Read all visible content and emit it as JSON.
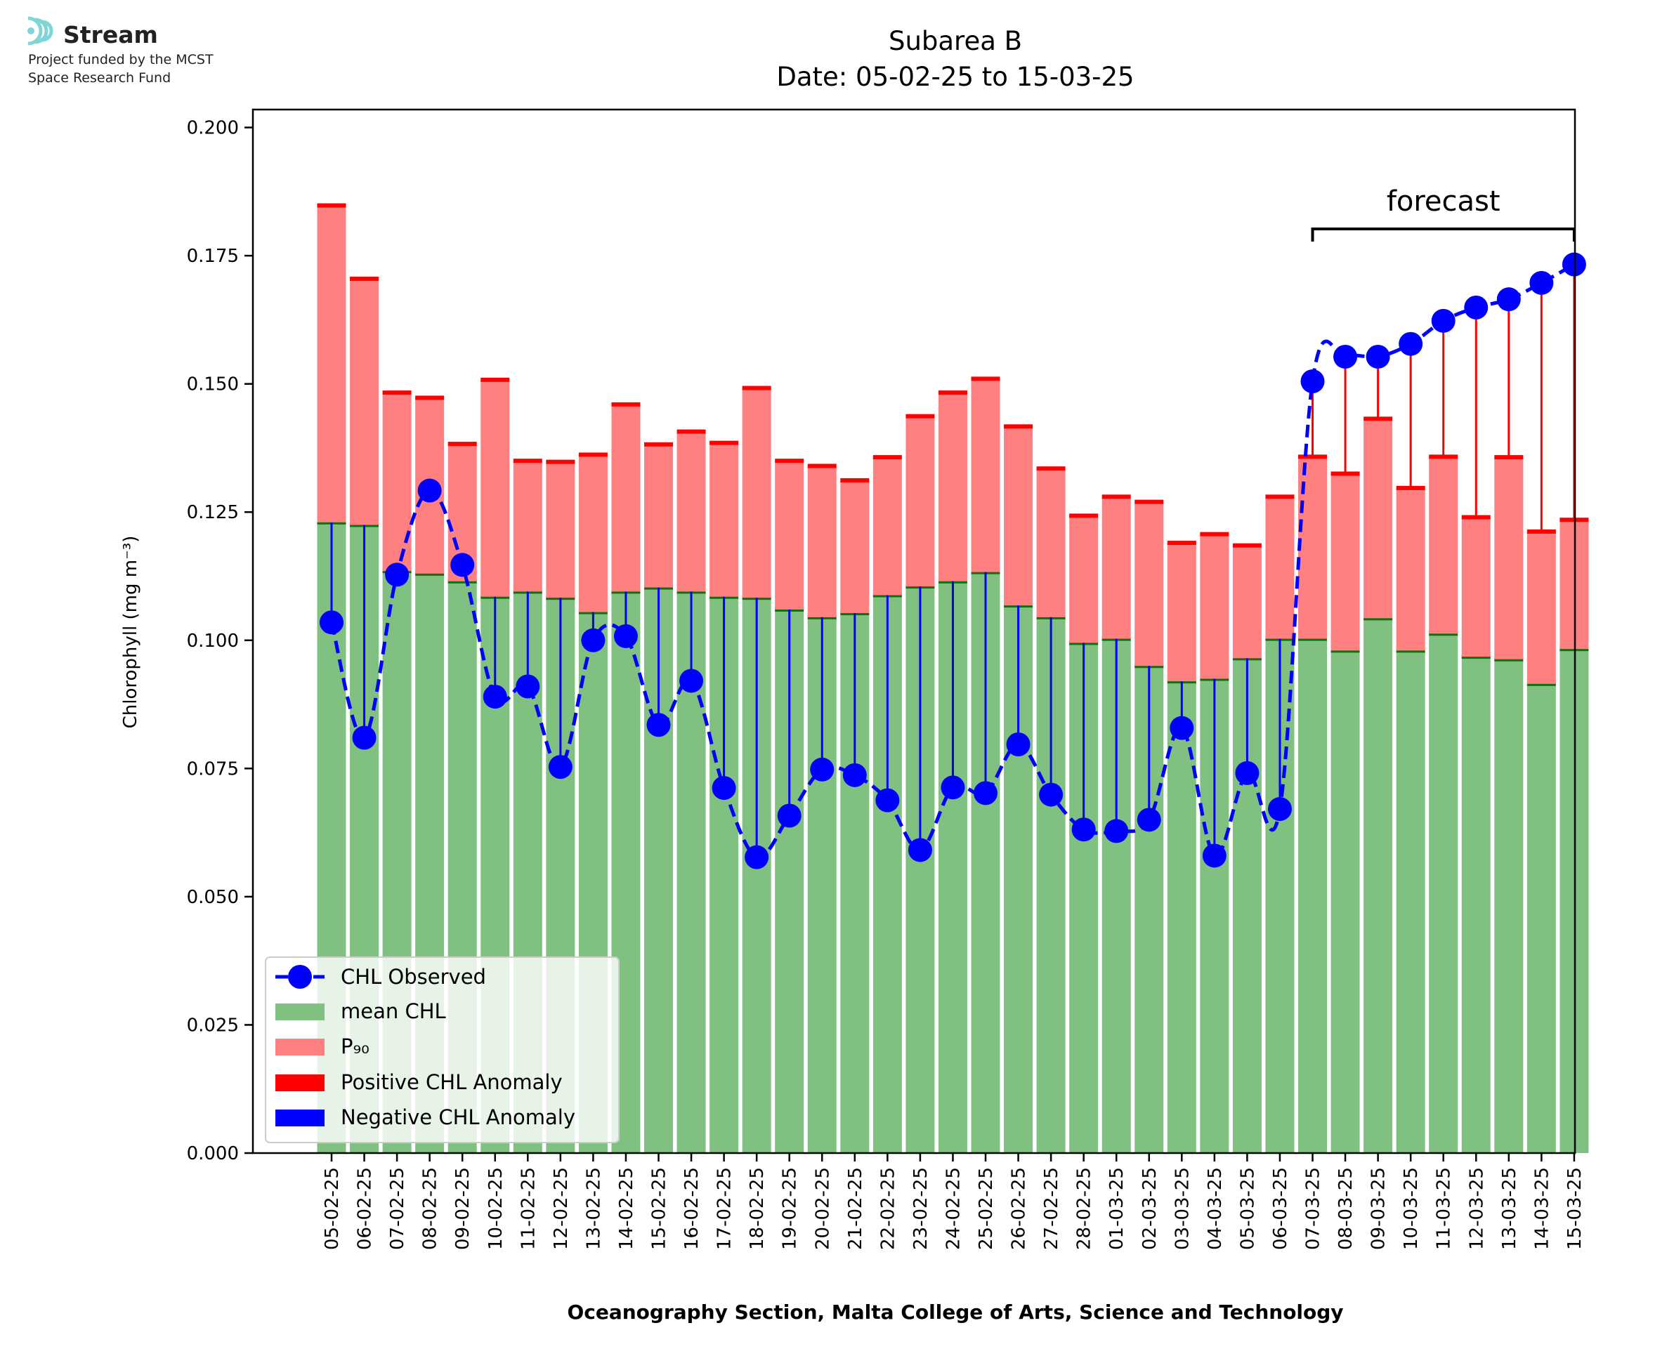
{
  "logo": {
    "name": "Stream",
    "line1": "Project funded by the MCST",
    "line2": "Space Research Fund",
    "color": "#7fd6d8"
  },
  "chart_data": {
    "type": "bar",
    "title": "Subarea B",
    "subtitle": "Date: 05-02-25 to 15-03-25",
    "ylabel": "Chlorophyll (mg m⁻³)",
    "xlabel": "Oceanography Section, Malta College of Arts, Science and Technology",
    "ylim": [
      0,
      0.2035
    ],
    "yticks": [
      "0.000",
      "0.025",
      "0.050",
      "0.075",
      "0.100",
      "0.125",
      "0.150",
      "0.175",
      "0.200"
    ],
    "ytick_values": [
      0,
      0.025,
      0.05,
      0.075,
      0.1,
      0.125,
      0.15,
      0.175,
      0.2
    ],
    "grid": false,
    "legend_position": "lower-left",
    "annotation": "forecast",
    "forecast_start": "07-03-25",
    "forecast_end": "15-03-25",
    "categories": [
      "05-02-25",
      "06-02-25",
      "07-02-25",
      "08-02-25",
      "09-02-25",
      "10-02-25",
      "11-02-25",
      "12-02-25",
      "13-02-25",
      "14-02-25",
      "15-02-25",
      "16-02-25",
      "17-02-25",
      "18-02-25",
      "19-02-25",
      "20-02-25",
      "21-02-25",
      "22-02-25",
      "23-02-25",
      "24-02-25",
      "25-02-25",
      "26-02-25",
      "27-02-25",
      "28-02-25",
      "01-03-25",
      "02-03-25",
      "03-03-25",
      "04-03-25",
      "05-03-25",
      "06-03-25",
      "07-03-25",
      "08-03-25",
      "09-03-25",
      "10-03-25",
      "11-03-25",
      "12-03-25",
      "13-03-25",
      "14-03-25",
      "15-03-25"
    ],
    "series": [
      {
        "name": "mean CHL",
        "color": "#80c080",
        "edge_color": "#107010",
        "values": [
          0.123,
          0.1225,
          0.1135,
          0.113,
          0.1115,
          0.1085,
          0.1095,
          0.1083,
          0.1055,
          0.1095,
          0.1103,
          0.1095,
          0.1085,
          0.1083,
          0.106,
          0.1045,
          0.1053,
          0.1088,
          0.1105,
          0.1115,
          0.1133,
          0.1068,
          0.1045,
          0.0995,
          0.1003,
          0.095,
          0.092,
          0.0925,
          0.0965,
          0.1003,
          0.1003,
          0.098,
          0.1043,
          0.098,
          0.1013,
          0.0968,
          0.0963,
          0.0915,
          0.0983
        ]
      },
      {
        "name": "P₉₀",
        "color": "#ff8080",
        "edge_color": "#ff0000",
        "values": [
          0.1848,
          0.1705,
          0.1483,
          0.1473,
          0.1383,
          0.1508,
          0.135,
          0.1348,
          0.1362,
          0.146,
          0.1382,
          0.1407,
          0.1385,
          0.1492,
          0.135,
          0.134,
          0.1312,
          0.1357,
          0.1437,
          0.1483,
          0.151,
          0.1417,
          0.1335,
          0.1243,
          0.128,
          0.127,
          0.119,
          0.1207,
          0.1185,
          0.128,
          0.1358,
          0.1325,
          0.1432,
          0.1297,
          0.1358,
          0.124,
          0.1357,
          0.1212,
          0.1235
        ]
      },
      {
        "name": "CHL Observed",
        "color": "#0000ff",
        "values": [
          0.1035,
          0.081,
          0.1128,
          0.1292,
          0.1147,
          0.089,
          0.091,
          0.0753,
          0.1,
          0.1008,
          0.0835,
          0.0921,
          0.0712,
          0.0577,
          0.0658,
          0.0748,
          0.0737,
          0.0688,
          0.0591,
          0.0713,
          0.0702,
          0.0797,
          0.0699,
          0.0631,
          0.0628,
          0.065,
          0.0829,
          0.058,
          0.0741,
          0.0671,
          0.1505,
          0.1553,
          0.1553,
          0.1578,
          0.1623,
          0.1649,
          0.1665,
          0.1697,
          0.1733
        ]
      }
    ],
    "legend": [
      {
        "label": "CHL Observed",
        "kind": "line-marker",
        "color": "#0000ff"
      },
      {
        "label": "mean CHL",
        "kind": "patch",
        "color": "#80c080"
      },
      {
        "label": "P₉₀",
        "kind": "patch",
        "color": "#ff8080"
      },
      {
        "label": "Positive CHL Anomaly",
        "kind": "patch",
        "color": "#ff0000"
      },
      {
        "label": "Negative CHL Anomaly",
        "kind": "patch",
        "color": "#0000ff"
      }
    ]
  }
}
